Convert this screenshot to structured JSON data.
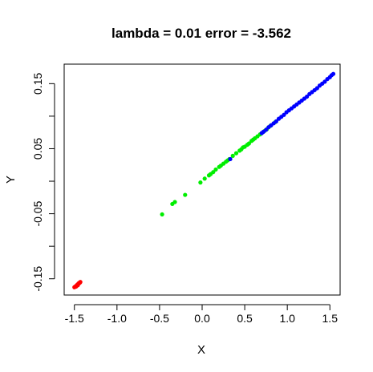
{
  "chart_data": {
    "type": "scatter",
    "title": "lambda = 0.01 error = -3.562",
    "xlabel": "X",
    "ylabel": "Y",
    "xlim": [
      -1.62,
      1.62
    ],
    "ylim": [
      -0.175,
      0.18
    ],
    "xticks": [
      -1.5,
      -1.0,
      -0.5,
      0.0,
      0.5,
      1.0,
      1.5
    ],
    "xtick_labels": [
      "-1.5",
      "-1.0",
      "-0.5",
      "0.0",
      "0.5",
      "1.0",
      "1.5"
    ],
    "yticks": [
      -0.15,
      -0.05,
      0.05,
      0.15
    ],
    "ytick_labels": [
      "-0.15",
      "-0.05",
      "0.05",
      "0.15"
    ],
    "yticks_minor": [
      -0.1,
      0.0,
      0.1
    ],
    "grid": false,
    "series": [
      {
        "color": "#ff0000",
        "x": [
          -1.5,
          -1.49,
          -1.48,
          -1.47,
          -1.465,
          -1.46,
          -1.455,
          -1.45,
          -1.445,
          -1.44,
          -1.435,
          -1.43,
          -1.48,
          -1.46
        ],
        "y": [
          -0.163,
          -0.162,
          -0.161,
          -0.16,
          -0.159,
          -0.159,
          -0.158,
          -0.157,
          -0.157,
          -0.156,
          -0.156,
          -0.155,
          -0.162,
          -0.16
        ]
      },
      {
        "color": "#00ee00",
        "x": [
          -0.47,
          -0.35,
          -0.32,
          -0.2,
          -0.02,
          0.03,
          0.08,
          0.1,
          0.13,
          0.16,
          0.2,
          0.22,
          0.25,
          0.28,
          0.3,
          0.32,
          0.36,
          0.4,
          0.44,
          0.46,
          0.48,
          0.5,
          0.53,
          0.55,
          0.58,
          0.6,
          0.62,
          0.65,
          0.68,
          0.7,
          0.73,
          0.76,
          0.8,
          0.86
        ],
        "y": [
          -0.051,
          -0.035,
          -0.032,
          -0.021,
          -0.002,
          0.004,
          0.009,
          0.011,
          0.014,
          0.018,
          0.022,
          0.024,
          0.027,
          0.03,
          0.032,
          0.034,
          0.039,
          0.043,
          0.047,
          0.049,
          0.052,
          0.053,
          0.056,
          0.058,
          0.062,
          0.064,
          0.066,
          0.069,
          0.072,
          0.074,
          0.077,
          0.08,
          0.085,
          0.091
        ]
      },
      {
        "color": "#0000ff",
        "x": [
          0.33,
          0.7,
          0.72,
          0.75,
          0.78,
          0.81,
          0.84,
          0.87,
          0.9,
          0.93,
          0.96,
          0.99,
          1.02,
          1.05,
          1.08,
          1.11,
          1.14,
          1.17,
          1.2,
          1.23,
          1.26,
          1.29,
          1.32,
          1.35,
          1.38,
          1.41,
          1.44,
          1.47,
          1.5,
          1.52,
          1.54
        ],
        "y": [
          0.034,
          0.074,
          0.076,
          0.079,
          0.083,
          0.086,
          0.089,
          0.092,
          0.096,
          0.099,
          0.102,
          0.106,
          0.109,
          0.112,
          0.115,
          0.118,
          0.121,
          0.124,
          0.127,
          0.13,
          0.134,
          0.137,
          0.14,
          0.143,
          0.147,
          0.15,
          0.153,
          0.157,
          0.16,
          0.163,
          0.165
        ]
      }
    ]
  }
}
